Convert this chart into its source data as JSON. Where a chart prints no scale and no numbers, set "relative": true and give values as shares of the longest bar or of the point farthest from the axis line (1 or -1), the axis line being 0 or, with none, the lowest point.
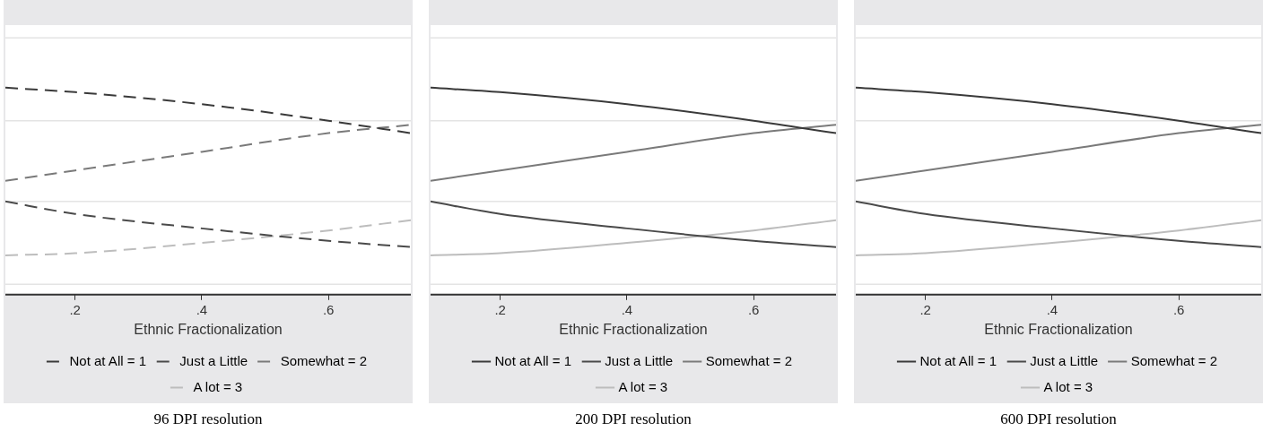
{
  "chart_data": [
    {
      "type": "line",
      "relative": true,
      "xlabel": "Ethnic Fractionalization",
      "x": [
        0.09,
        0.2,
        0.4,
        0.6,
        0.73
      ],
      "xlim": [
        0.09,
        0.73
      ],
      "xticks": [
        {
          "value": 0.2,
          "label": ".2"
        },
        {
          "value": 0.4,
          "label": ".4"
        },
        {
          "value": 0.6,
          "label": ".6"
        }
      ],
      "grid": false,
      "ref_lines": [
        {
          "axis": "y",
          "value": 0.05,
          "color": "#e4e4e4"
        },
        {
          "axis": "y",
          "value": 0.45,
          "color": "#e4e4e4"
        },
        {
          "axis": "y",
          "value": 0.84,
          "color": "#e4e4e4"
        },
        {
          "axis": "y",
          "value": 1.24,
          "color": "#e4e4e4"
        }
      ],
      "legend": "bottom",
      "line_style": "dashed",
      "marker": "none",
      "annotations": [
        "96 DPI resolution"
      ],
      "series": [
        {
          "name": "Not at All = 1",
          "color": "#3a3a3a",
          "values": [
            1.0,
            0.978,
            0.92,
            0.84,
            0.78
          ]
        },
        {
          "name": "Just a Little",
          "color": "#4a4a4a",
          "values": [
            0.45,
            0.39,
            0.32,
            0.26,
            0.23
          ]
        },
        {
          "name": "Somewhat = 2",
          "color": "#7a7a7a",
          "values": [
            0.55,
            0.6,
            0.69,
            0.78,
            0.82
          ]
        },
        {
          "name": "A lot = 3",
          "color": "#bdbdbd",
          "values": [
            0.19,
            0.2,
            0.25,
            0.31,
            0.36
          ]
        }
      ]
    },
    {
      "type": "line",
      "relative": true,
      "xlabel": "Ethnic Fractionalization",
      "x": [
        0.09,
        0.2,
        0.4,
        0.6,
        0.73
      ],
      "xlim": [
        0.09,
        0.73
      ],
      "xticks": [
        {
          "value": 0.2,
          "label": ".2"
        },
        {
          "value": 0.4,
          "label": ".4"
        },
        {
          "value": 0.6,
          "label": ".6"
        }
      ],
      "grid": false,
      "ref_lines": [
        {
          "axis": "y",
          "value": 0.05,
          "color": "#e4e4e4"
        },
        {
          "axis": "y",
          "value": 0.45,
          "color": "#e4e4e4"
        },
        {
          "axis": "y",
          "value": 0.84,
          "color": "#e4e4e4"
        },
        {
          "axis": "y",
          "value": 1.24,
          "color": "#e4e4e4"
        }
      ],
      "legend": "bottom",
      "line_style": "solid",
      "marker": "none",
      "annotations": [
        "200 DPI resolution"
      ],
      "series": [
        {
          "name": "Not at All = 1",
          "color": "#3a3a3a",
          "values": [
            1.0,
            0.978,
            0.92,
            0.84,
            0.78
          ]
        },
        {
          "name": "Just a Little",
          "color": "#4a4a4a",
          "values": [
            0.45,
            0.39,
            0.32,
            0.26,
            0.23
          ]
        },
        {
          "name": "Somewhat = 2",
          "color": "#7a7a7a",
          "values": [
            0.55,
            0.6,
            0.69,
            0.78,
            0.82
          ]
        },
        {
          "name": "A lot = 3",
          "color": "#bdbdbd",
          "values": [
            0.19,
            0.2,
            0.25,
            0.31,
            0.36
          ]
        }
      ]
    },
    {
      "type": "line",
      "relative": true,
      "xlabel": "Ethnic Fractionalization",
      "x": [
        0.09,
        0.2,
        0.4,
        0.6,
        0.73
      ],
      "xlim": [
        0.09,
        0.73
      ],
      "xticks": [
        {
          "value": 0.2,
          "label": ".2"
        },
        {
          "value": 0.4,
          "label": ".4"
        },
        {
          "value": 0.6,
          "label": ".6"
        }
      ],
      "grid": false,
      "ref_lines": [
        {
          "axis": "y",
          "value": 0.05,
          "color": "#e4e4e4"
        },
        {
          "axis": "y",
          "value": 0.45,
          "color": "#e4e4e4"
        },
        {
          "axis": "y",
          "value": 0.84,
          "color": "#e4e4e4"
        },
        {
          "axis": "y",
          "value": 1.24,
          "color": "#e4e4e4"
        }
      ],
      "legend": "bottom",
      "line_style": "solid",
      "marker": "none",
      "annotations": [
        "600 DPI resolution"
      ],
      "series": [
        {
          "name": "Not at All = 1",
          "color": "#3a3a3a",
          "values": [
            1.0,
            0.978,
            0.92,
            0.84,
            0.78
          ]
        },
        {
          "name": "Just a Little",
          "color": "#4a4a4a",
          "values": [
            0.45,
            0.39,
            0.32,
            0.26,
            0.23
          ]
        },
        {
          "name": "Somewhat = 2",
          "color": "#7a7a7a",
          "values": [
            0.55,
            0.6,
            0.69,
            0.78,
            0.82
          ]
        },
        {
          "name": "A lot = 3",
          "color": "#bdbdbd",
          "values": [
            0.19,
            0.2,
            0.25,
            0.31,
            0.36
          ]
        }
      ]
    }
  ]
}
